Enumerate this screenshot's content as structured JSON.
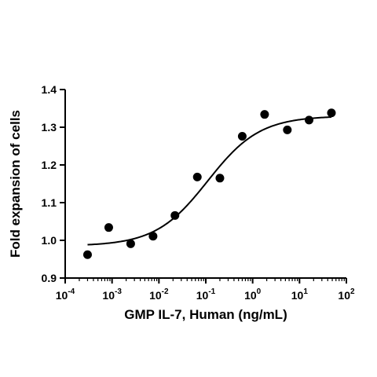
{
  "chart_data": {
    "type": "scatter",
    "xlabel": "GMP IL-7, Human (ng/mL)",
    "ylabel": "Fold expansion of cells",
    "x_scale": "log",
    "xlim": [
      0.0001,
      100
    ],
    "ylim": [
      0.9,
      1.4
    ],
    "x_ticks": [
      {
        "base": "10",
        "exp": "-4",
        "value": 0.0001
      },
      {
        "base": "10",
        "exp": "-3",
        "value": 0.001
      },
      {
        "base": "10",
        "exp": "-2",
        "value": 0.01
      },
      {
        "base": "10",
        "exp": "-1",
        "value": 0.1
      },
      {
        "base": "10",
        "exp": "0",
        "value": 1
      },
      {
        "base": "10",
        "exp": "1",
        "value": 10
      },
      {
        "base": "10",
        "exp": "2",
        "value": 100
      }
    ],
    "y_ticks": [
      "0.9",
      "1.0",
      "1.1",
      "1.2",
      "1.3",
      "1.4"
    ],
    "grid": false,
    "points": [
      {
        "x": 0.0003,
        "y": 0.962
      },
      {
        "x": 0.00085,
        "y": 1.034
      },
      {
        "x": 0.0025,
        "y": 0.991
      },
      {
        "x": 0.0075,
        "y": 1.011
      },
      {
        "x": 0.022,
        "y": 1.066
      },
      {
        "x": 0.066,
        "y": 1.168
      },
      {
        "x": 0.2,
        "y": 1.165
      },
      {
        "x": 0.6,
        "y": 1.276
      },
      {
        "x": 1.8,
        "y": 1.334
      },
      {
        "x": 5.5,
        "y": 1.293
      },
      {
        "x": 16,
        "y": 1.319
      },
      {
        "x": 48,
        "y": 1.338
      }
    ],
    "fit_curve": {
      "model": "4PL",
      "bottom": 0.985,
      "top": 1.33,
      "ec50": 0.11,
      "hill": 0.78,
      "x_range": [
        0.0003,
        48
      ]
    }
  }
}
